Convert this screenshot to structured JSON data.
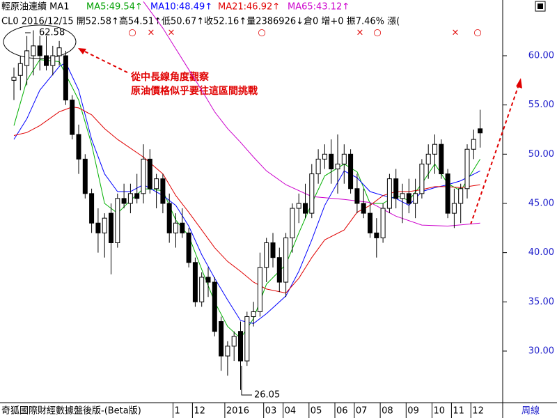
{
  "chart_data": {
    "type": "candlestick",
    "header": [
      "輕原油連續 MA1",
      "MA5:49.54↑",
      "MA10:48.49↑",
      "MA21:46.92↑",
      "MA65:43.12↑"
    ],
    "header_colors": [
      "#000000",
      "#00a000",
      "#0000ff",
      "#e00000",
      "#cc00cc"
    ],
    "quote_line": "CL0 2016/12/15 開52.58↑高54.51↑低50.67↑收52.16↑量2386926↓倉0 增+0 振7.46% 漲(",
    "signals": [
      "○",
      "×",
      "×",
      "○",
      "×",
      "○",
      "×",
      "○"
    ],
    "annotations": [
      "從中長線角度觀察",
      "原油價格似乎要往這區間挑戰"
    ],
    "high_label": "62.58",
    "low_label": "26.05",
    "footer": "奇狐國際財經數據盤後版-(Beta版)",
    "period": "周線",
    "categories": [
      null,
      null,
      null,
      null,
      null,
      null,
      null,
      null,
      null,
      null,
      null,
      null,
      null,
      null,
      null,
      null,
      null,
      null,
      null,
      null,
      null,
      null,
      null,
      null,
      null,
      "1",
      null,
      null,
      "12",
      null,
      null,
      null,
      null,
      "2016",
      null,
      null,
      null,
      null,
      null,
      "03",
      null,
      null,
      "04",
      null,
      null,
      null,
      "05",
      null,
      null,
      null,
      "06",
      null,
      null,
      "07",
      null,
      null,
      null,
      "08",
      null,
      null,
      null,
      "09",
      null,
      null,
      null,
      "10",
      null,
      null,
      "11",
      null,
      null,
      "12",
      null
    ],
    "open": [
      57.5,
      58,
      59,
      60,
      61,
      60,
      59,
      60,
      60,
      55.5,
      52,
      49.5,
      46,
      43,
      42,
      44,
      41,
      45.5,
      45,
      46,
      46,
      49.5,
      46.5,
      47.5,
      45,
      42,
      43,
      42,
      39,
      35,
      37.5,
      37,
      33,
      29.5,
      30.5,
      32,
      29,
      33.5,
      34,
      38.5,
      41,
      39.5,
      37,
      41.5,
      44.5,
      45,
      44,
      48,
      49.5,
      50,
      48.5,
      49,
      50,
      46.5,
      45,
      44,
      42,
      41.5,
      44.5,
      47.5,
      45.5,
      46,
      45,
      46,
      49,
      50,
      51,
      48,
      44,
      45,
      46.5,
      50.5,
      52.58
    ],
    "high": [
      58.8,
      60,
      62,
      62.58,
      62,
      62,
      61,
      61.5,
      60.5,
      56,
      53,
      50,
      46.5,
      44.5,
      44,
      45,
      46,
      47,
      47,
      48,
      51,
      50.5,
      48,
      48,
      46,
      44,
      44.5,
      42.5,
      39.5,
      38,
      38.5,
      37.5,
      33.5,
      31,
      32,
      33,
      34,
      35,
      40,
      41.5,
      42,
      40.5,
      42,
      45,
      46,
      47,
      49,
      50.5,
      51,
      51.5,
      52,
      51,
      50.5,
      48,
      46.5,
      45,
      43.5,
      45,
      48,
      48.5,
      47,
      47.5,
      47.5,
      49.5,
      51,
      52,
      51.5,
      48.5,
      46.5,
      47,
      51,
      52.5,
      54.51
    ],
    "low": [
      55.5,
      56.5,
      57,
      58,
      58.5,
      58.5,
      58,
      59,
      55,
      51.5,
      48,
      45.5,
      42,
      40,
      39.5,
      37.8,
      40.5,
      44.5,
      44,
      45,
      45,
      46,
      44.5,
      44,
      41,
      40.5,
      41.5,
      38.5,
      34.5,
      34.5,
      35.5,
      31.5,
      28,
      27.5,
      29,
      26.05,
      28.5,
      32.5,
      33.5,
      37,
      38.5,
      36,
      35.5,
      40,
      43,
      43.5,
      43.5,
      47,
      48.5,
      47,
      46,
      47,
      46,
      44,
      43.5,
      41.5,
      39.5,
      41,
      44,
      44.5,
      43,
      44,
      43.5,
      45.5,
      47.5,
      48,
      47.5,
      43.5,
      42.5,
      43,
      45.5,
      49.5,
      50.67
    ],
    "close": [
      57.8,
      59.2,
      60.5,
      61,
      60,
      59,
      60,
      60.8,
      55.5,
      52,
      49.5,
      46,
      43,
      42,
      43.5,
      41,
      45.5,
      45,
      46,
      45.5,
      49.5,
      46.5,
      47.5,
      45,
      42,
      43,
      42,
      39,
      35,
      37.5,
      37,
      32,
      29.5,
      30.5,
      31.5,
      29,
      33.5,
      34,
      38.5,
      41,
      39.5,
      37,
      41.5,
      44.5,
      45,
      44,
      48,
      49.5,
      50,
      48.5,
      49,
      50,
      46.5,
      45,
      44,
      42,
      41.5,
      44.5,
      47.5,
      45.5,
      46,
      45,
      46,
      49,
      50,
      51,
      48,
      44,
      45,
      46.5,
      50.5,
      51.5,
      52.16
    ],
    "series": [
      {
        "color": "#00b000",
        "x": [
          0,
          2,
          4,
          7,
          10,
          12,
          14,
          16,
          18,
          20,
          23,
          25,
          27,
          29,
          31,
          33,
          35,
          37,
          39,
          42,
          44,
          46,
          48,
          51,
          53,
          55,
          57,
          59,
          61,
          63,
          65,
          67,
          69,
          72
        ],
        "values": [
          52.9,
          57.5,
          59.6,
          59.4,
          55.5,
          51,
          45,
          44,
          45.3,
          46.5,
          46.3,
          43.3,
          41.7,
          38.3,
          35,
          32.5,
          31.3,
          33.3,
          36.8,
          38.8,
          42,
          45,
          47.8,
          49,
          48.2,
          45,
          45,
          45.8,
          45.3,
          47,
          49,
          47,
          46.3,
          49.5
        ]
      },
      {
        "color": "#0000ff",
        "x": [
          0,
          2,
          4,
          7,
          8,
          10,
          12,
          14,
          16,
          18,
          20,
          23,
          25,
          27,
          29,
          31,
          33,
          35,
          37,
          39,
          42,
          44,
          46,
          48,
          51,
          53,
          55,
          57,
          59,
          61,
          63,
          65,
          67,
          69,
          72
        ],
        "values": [
          51.5,
          53.6,
          56.5,
          58.9,
          59.3,
          56.5,
          51.5,
          48,
          46.2,
          46.2,
          46.9,
          45.8,
          44.8,
          42.7,
          39.8,
          37.4,
          35.2,
          33.1,
          32.8,
          33.8,
          35.6,
          38.1,
          41.3,
          44.8,
          48.3,
          47.6,
          46.2,
          45.8,
          45.5,
          44.8,
          46.2,
          46.6,
          46.9,
          47.3,
          48.3
        ]
      },
      {
        "color": "#e00000",
        "x": [
          0,
          2,
          4,
          7,
          9,
          10,
          12,
          14,
          16,
          20,
          23,
          25,
          27,
          29,
          31,
          33,
          35,
          37,
          39,
          42,
          44,
          46,
          48,
          51,
          53,
          55,
          57,
          59,
          61,
          63,
          65,
          67,
          69,
          72
        ],
        "values": [
          51.9,
          52.2,
          52.9,
          54.3,
          54.8,
          54.7,
          54,
          52.6,
          51.5,
          49.7,
          48,
          45.8,
          44.1,
          42.3,
          40.5,
          39.1,
          38.1,
          37,
          36.3,
          35.9,
          37.4,
          39.5,
          41.3,
          42.3,
          44.1,
          44.8,
          45.8,
          46.2,
          46.2,
          46.4,
          46.7,
          46.7,
          46.6,
          46.9
        ]
      },
      {
        "color": "#cc00cc",
        "x": [
          20,
          23,
          25,
          27,
          29,
          31,
          33,
          35,
          37,
          39,
          42,
          46,
          51,
          55,
          57,
          59,
          63,
          67,
          72
        ],
        "values": [
          65.5,
          62.8,
          60.7,
          58.6,
          56.5,
          54.3,
          52.6,
          51.2,
          49.7,
          48.3,
          46.9,
          45.7,
          45.4,
          45.1,
          44.4,
          43.7,
          42.8,
          42.7,
          43
        ]
      }
    ],
    "ylim": [
      24.76,
      65.66
    ],
    "yticks": [
      {
        "value": 30,
        "label": "30.00"
      },
      {
        "value": 35,
        "label": "35.00"
      },
      {
        "value": 40,
        "label": "40.00"
      },
      {
        "value": 45,
        "label": "45.00"
      },
      {
        "value": 50,
        "label": "50.00"
      },
      {
        "value": 55,
        "label": "55.00"
      },
      {
        "value": 60,
        "label": "60.00"
      }
    ],
    "up_color": "#ffffff",
    "down_color": "#000000"
  }
}
